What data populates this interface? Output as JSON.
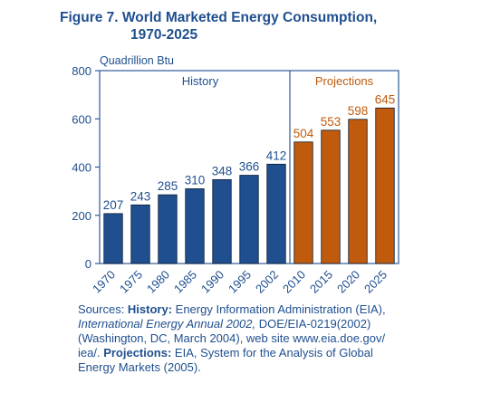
{
  "figure": {
    "title_line1": "Figure 7.  World Marketed Energy Consumption,",
    "title_line2": "1970-2025"
  },
  "chart_data": {
    "type": "bar",
    "ylabel": "Quadrillion Btu",
    "ylim": [
      0,
      800
    ],
    "yticks": [
      "0",
      "200",
      "400",
      "600",
      "800"
    ],
    "grid": false,
    "categories": [
      "1970",
      "1975",
      "1980",
      "1985",
      "1990",
      "1995",
      "2002",
      "2010",
      "2015",
      "2020",
      "2025"
    ],
    "values": [
      207,
      243,
      285,
      310,
      348,
      366,
      412,
      504,
      553,
      598,
      645
    ],
    "value_labels": [
      "207",
      "243",
      "285",
      "310",
      "348",
      "366",
      "412",
      "504",
      "553",
      "598",
      "645"
    ],
    "series": [
      {
        "name": "History",
        "range": [
          0,
          6
        ],
        "color": "#1f4f8f",
        "label_color": "#1f4f8f"
      },
      {
        "name": "Projections",
        "range": [
          7,
          10
        ],
        "color": "#c05a0c",
        "label_color": "#c05a0c"
      }
    ],
    "frame_color": "#2f5a9a"
  },
  "sources": {
    "line1_prefix": "Sources: ",
    "line1_bold": "History:",
    "line1_rest": " Energy Information Administration (EIA),",
    "line2_italic": "International Energy Annual 2002,",
    "line2_rest": " DOE/EIA-0219(2002)",
    "line3": "(Washington, DC, March 2004), web site www.eia.doe.gov/",
    "line4_prefix": "iea/. ",
    "line4_bold": "Projections:",
    "line4_rest": " EIA, System for the Analysis of Global",
    "line5": "Energy Markets (2005)."
  }
}
